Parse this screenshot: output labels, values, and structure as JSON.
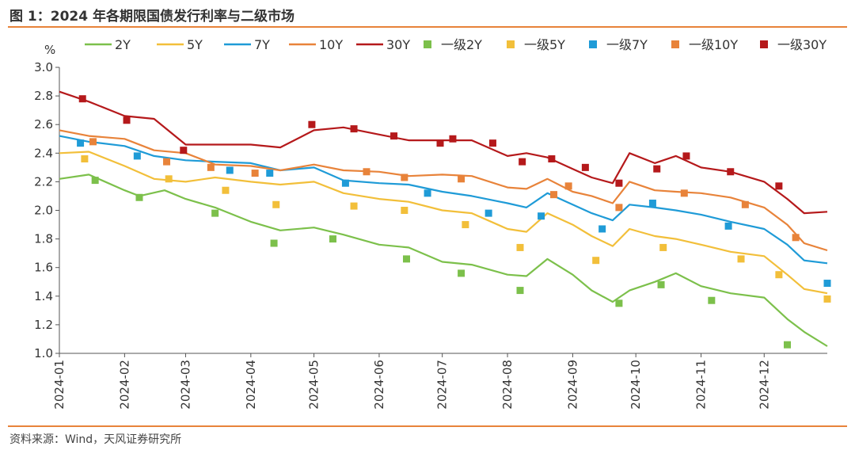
{
  "title": "图 1：2024 年各期限国债发行利率与二级市场",
  "source": "资料来源：Wind，天风证券研究所",
  "chart_data": {
    "type": "line",
    "ylabel": "%",
    "ylim": [
      1.0,
      3.0
    ],
    "yticks": [
      "1.0",
      "1.2",
      "1.4",
      "1.6",
      "1.8",
      "2.0",
      "2.2",
      "2.4",
      "2.6",
      "2.8",
      "3.0"
    ],
    "xlim": [
      "2024-01-01",
      "2024-12-31"
    ],
    "xticks": [
      "2024-01",
      "2024-02",
      "2024-03",
      "2024-04",
      "2024-05",
      "2024-06",
      "2024-07",
      "2024-08",
      "2024-09",
      "2024-10",
      "2024-11",
      "2024-12"
    ],
    "grid": false,
    "legend": "top",
    "series": [
      {
        "name": "2Y",
        "type": "line",
        "color": "#7cc04b",
        "x": [
          "2024-01-01",
          "2024-01-15",
          "2024-02-01",
          "2024-02-08",
          "2024-02-20",
          "2024-03-01",
          "2024-03-15",
          "2024-04-01",
          "2024-04-15",
          "2024-05-01",
          "2024-05-15",
          "2024-06-01",
          "2024-06-15",
          "2024-07-01",
          "2024-07-15",
          "2024-08-01",
          "2024-08-10",
          "2024-08-20",
          "2024-09-01",
          "2024-09-10",
          "2024-09-20",
          "2024-09-28",
          "2024-10-10",
          "2024-10-20",
          "2024-11-01",
          "2024-11-15",
          "2024-12-01",
          "2024-12-12",
          "2024-12-20",
          "2024-12-31"
        ],
        "y": [
          2.22,
          2.25,
          2.14,
          2.1,
          2.14,
          2.08,
          2.02,
          1.92,
          1.86,
          1.88,
          1.83,
          1.76,
          1.74,
          1.64,
          1.62,
          1.55,
          1.54,
          1.66,
          1.55,
          1.44,
          1.36,
          1.44,
          1.5,
          1.56,
          1.47,
          1.42,
          1.39,
          1.24,
          1.15,
          1.05
        ]
      },
      {
        "name": "5Y",
        "type": "line",
        "color": "#f2bf3a",
        "x": [
          "2024-01-01",
          "2024-01-15",
          "2024-02-01",
          "2024-02-15",
          "2024-03-01",
          "2024-03-15",
          "2024-04-01",
          "2024-04-15",
          "2024-05-01",
          "2024-05-15",
          "2024-06-01",
          "2024-06-15",
          "2024-07-01",
          "2024-07-15",
          "2024-08-01",
          "2024-08-10",
          "2024-08-20",
          "2024-09-01",
          "2024-09-10",
          "2024-09-20",
          "2024-09-28",
          "2024-10-10",
          "2024-10-20",
          "2024-11-01",
          "2024-11-15",
          "2024-12-01",
          "2024-12-12",
          "2024-12-20",
          "2024-12-31"
        ],
        "y": [
          2.4,
          2.41,
          2.31,
          2.22,
          2.2,
          2.23,
          2.2,
          2.18,
          2.2,
          2.12,
          2.08,
          2.06,
          2.0,
          1.98,
          1.87,
          1.85,
          1.98,
          1.9,
          1.82,
          1.75,
          1.87,
          1.82,
          1.8,
          1.76,
          1.71,
          1.68,
          1.55,
          1.45,
          1.42
        ]
      },
      {
        "name": "7Y",
        "type": "line",
        "color": "#1f9bd7",
        "x": [
          "2024-01-01",
          "2024-01-15",
          "2024-02-01",
          "2024-02-15",
          "2024-03-01",
          "2024-03-15",
          "2024-04-01",
          "2024-04-15",
          "2024-05-01",
          "2024-05-15",
          "2024-06-01",
          "2024-06-15",
          "2024-07-01",
          "2024-07-15",
          "2024-08-01",
          "2024-08-10",
          "2024-08-20",
          "2024-09-01",
          "2024-09-10",
          "2024-09-20",
          "2024-09-28",
          "2024-10-10",
          "2024-10-20",
          "2024-11-01",
          "2024-11-15",
          "2024-12-01",
          "2024-12-12",
          "2024-12-20",
          "2024-12-31"
        ],
        "y": [
          2.52,
          2.48,
          2.45,
          2.38,
          2.35,
          2.34,
          2.33,
          2.28,
          2.3,
          2.21,
          2.19,
          2.18,
          2.13,
          2.1,
          2.05,
          2.02,
          2.12,
          2.04,
          1.98,
          1.93,
          2.04,
          2.02,
          2.0,
          1.97,
          1.92,
          1.87,
          1.76,
          1.65,
          1.63
        ]
      },
      {
        "name": "10Y",
        "type": "line",
        "color": "#e8833a",
        "x": [
          "2024-01-01",
          "2024-01-15",
          "2024-02-01",
          "2024-02-15",
          "2024-03-01",
          "2024-03-15",
          "2024-04-01",
          "2024-04-15",
          "2024-05-01",
          "2024-05-15",
          "2024-06-01",
          "2024-06-15",
          "2024-07-01",
          "2024-07-15",
          "2024-08-01",
          "2024-08-10",
          "2024-08-20",
          "2024-09-01",
          "2024-09-10",
          "2024-09-20",
          "2024-09-28",
          "2024-10-10",
          "2024-10-20",
          "2024-11-01",
          "2024-11-15",
          "2024-12-01",
          "2024-12-12",
          "2024-12-20",
          "2024-12-31"
        ],
        "y": [
          2.56,
          2.52,
          2.5,
          2.42,
          2.4,
          2.32,
          2.31,
          2.28,
          2.32,
          2.28,
          2.27,
          2.24,
          2.25,
          2.24,
          2.16,
          2.15,
          2.22,
          2.13,
          2.1,
          2.05,
          2.2,
          2.14,
          2.13,
          2.12,
          2.09,
          2.02,
          1.9,
          1.77,
          1.72
        ]
      },
      {
        "name": "30Y",
        "type": "line",
        "color": "#b5191b",
        "x": [
          "2024-01-01",
          "2024-01-15",
          "2024-02-01",
          "2024-02-15",
          "2024-03-01",
          "2024-03-15",
          "2024-04-01",
          "2024-04-15",
          "2024-05-01",
          "2024-05-15",
          "2024-06-01",
          "2024-06-15",
          "2024-07-01",
          "2024-07-15",
          "2024-08-01",
          "2024-08-10",
          "2024-08-20",
          "2024-09-01",
          "2024-09-10",
          "2024-09-20",
          "2024-09-28",
          "2024-10-10",
          "2024-10-20",
          "2024-11-01",
          "2024-11-15",
          "2024-12-01",
          "2024-12-12",
          "2024-12-20",
          "2024-12-31"
        ],
        "y": [
          2.83,
          2.76,
          2.66,
          2.64,
          2.46,
          2.46,
          2.46,
          2.44,
          2.56,
          2.58,
          2.53,
          2.49,
          2.49,
          2.49,
          2.38,
          2.4,
          2.37,
          2.29,
          2.23,
          2.19,
          2.4,
          2.33,
          2.38,
          2.3,
          2.27,
          2.2,
          2.08,
          1.98,
          1.99
        ]
      },
      {
        "name": "一级2Y",
        "type": "scatter",
        "color": "#7cc04b",
        "x": [
          "2024-01-18",
          "2024-02-08",
          "2024-03-15",
          "2024-04-12",
          "2024-05-10",
          "2024-06-14",
          "2024-07-10",
          "2024-08-07",
          "2024-09-23",
          "2024-10-13",
          "2024-11-06",
          "2024-12-12"
        ],
        "y": [
          2.21,
          2.09,
          1.98,
          1.77,
          1.8,
          1.66,
          1.56,
          1.44,
          1.35,
          1.48,
          1.37,
          1.06
        ]
      },
      {
        "name": "一级5Y",
        "type": "scatter",
        "color": "#f2bf3a",
        "x": [
          "2024-01-13",
          "2024-02-22",
          "2024-03-20",
          "2024-04-13",
          "2024-05-20",
          "2024-06-13",
          "2024-07-12",
          "2024-08-07",
          "2024-09-12",
          "2024-10-14",
          "2024-11-20",
          "2024-12-08",
          "2024-12-31"
        ],
        "y": [
          2.36,
          2.22,
          2.14,
          2.04,
          2.03,
          2.0,
          1.9,
          1.74,
          1.65,
          1.74,
          1.66,
          1.55,
          1.38
        ]
      },
      {
        "name": "一级7Y",
        "type": "scatter",
        "color": "#1f9bd7",
        "x": [
          "2024-01-11",
          "2024-02-07",
          "2024-03-22",
          "2024-04-10",
          "2024-05-16",
          "2024-06-24",
          "2024-07-23",
          "2024-08-17",
          "2024-09-15",
          "2024-10-09",
          "2024-11-14",
          "2024-12-31"
        ],
        "y": [
          2.47,
          2.38,
          2.28,
          2.26,
          2.19,
          2.12,
          1.98,
          1.96,
          1.87,
          2.05,
          1.89,
          1.49
        ]
      },
      {
        "name": "一级10Y",
        "type": "scatter",
        "color": "#e8833a",
        "x": [
          "2024-01-17",
          "2024-02-21",
          "2024-03-13",
          "2024-04-03",
          "2024-05-26",
          "2024-06-13",
          "2024-07-10",
          "2024-08-23",
          "2024-08-30",
          "2024-09-23",
          "2024-10-24",
          "2024-11-22",
          "2024-12-16"
        ],
        "y": [
          2.48,
          2.34,
          2.3,
          2.26,
          2.27,
          2.23,
          2.22,
          2.11,
          2.17,
          2.02,
          2.12,
          2.04,
          1.81
        ]
      },
      {
        "name": "一级30Y",
        "type": "scatter",
        "color": "#b5191b",
        "x": [
          "2024-01-12",
          "2024-02-02",
          "2024-02-29",
          "2024-04-30",
          "2024-05-20",
          "2024-06-08",
          "2024-06-30",
          "2024-07-06",
          "2024-07-25",
          "2024-08-08",
          "2024-08-22",
          "2024-09-07",
          "2024-09-23",
          "2024-10-11",
          "2024-10-25",
          "2024-11-15",
          "2024-12-08"
        ],
        "y": [
          2.78,
          2.63,
          2.42,
          2.6,
          2.57,
          2.52,
          2.47,
          2.5,
          2.47,
          2.34,
          2.36,
          2.3,
          2.19,
          2.29,
          2.38,
          2.27,
          2.17
        ]
      }
    ]
  }
}
